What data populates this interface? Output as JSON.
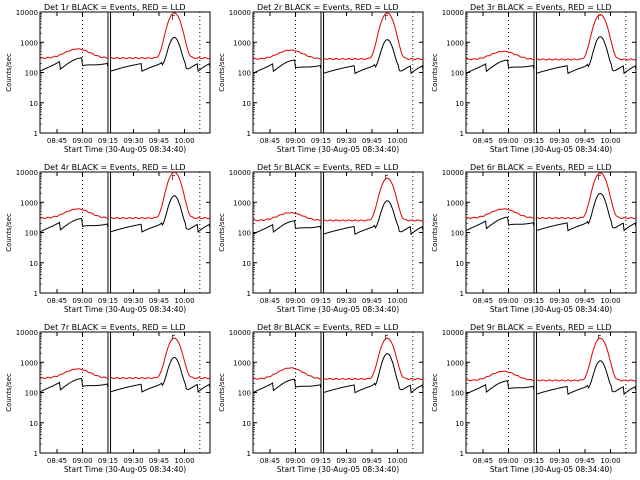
{
  "chart_data": {
    "type": "line",
    "layout": "3x3 grid",
    "x_tick_labels": [
      "08:45",
      "09:00",
      "09:15",
      "09:30",
      "09:45",
      "10:00"
    ],
    "xlabel": "Start Time (30-Aug-05 08:34:40)",
    "ylabel": "Counts/sec",
    "y_scale": "log",
    "ylim": [
      1,
      10000
    ],
    "y_tick_labels": [
      "1",
      "10",
      "100",
      "1000",
      "10000"
    ],
    "xlim_minutes": [
      0,
      100
    ],
    "dotted_markers_minutes": [
      25,
      94
    ],
    "solid_markers_minutes": [
      40,
      41.5
    ],
    "legend_glyph": "┌",
    "colors": {
      "events": "#000000",
      "lld": "#e00000"
    },
    "series_names": [
      "Events",
      "LLD"
    ],
    "panels": [
      {
        "title": "Det 1r BLACK = Events, RED = LLD",
        "lld_peak": 9000,
        "events_peak": 1300,
        "lld_bg": 300,
        "events_bg": 200,
        "lld_hump": 600
      },
      {
        "title": "Det 2r BLACK = Events, RED = LLD",
        "lld_peak": 9000,
        "events_peak": 1100,
        "lld_bg": 280,
        "events_bg": 170,
        "lld_hump": 550
      },
      {
        "title": "Det 3r BLACK = Events, RED = LLD",
        "lld_peak": 8000,
        "events_peak": 1400,
        "lld_bg": 270,
        "events_bg": 170,
        "lld_hump": 500
      },
      {
        "title": "Det 4r BLACK = Events, RED = LLD",
        "lld_peak": 9500,
        "events_peak": 1500,
        "lld_bg": 300,
        "events_bg": 190,
        "lld_hump": 600
      },
      {
        "title": "Det 5r BLACK = Events, RED = LLD",
        "lld_peak": 6000,
        "events_peak": 1000,
        "lld_bg": 250,
        "events_bg": 160,
        "lld_hump": 450
      },
      {
        "title": "Det 6r BLACK = Events, RED = LLD",
        "lld_peak": 9000,
        "events_peak": 1800,
        "lld_bg": 300,
        "events_bg": 210,
        "lld_hump": 600
      },
      {
        "title": "Det 7r BLACK = Events, RED = LLD",
        "lld_peak": 6000,
        "events_peak": 1300,
        "lld_bg": 300,
        "events_bg": 190,
        "lld_hump": 600
      },
      {
        "title": "Det 8r BLACK = Events, RED = LLD",
        "lld_peak": 6000,
        "events_peak": 1800,
        "lld_bg": 280,
        "events_bg": 180,
        "lld_hump": 650
      },
      {
        "title": "Det 9r BLACK = Events, RED = LLD",
        "lld_peak": 6000,
        "events_peak": 1000,
        "lld_bg": 250,
        "events_bg": 160,
        "lld_hump": 500
      }
    ]
  }
}
